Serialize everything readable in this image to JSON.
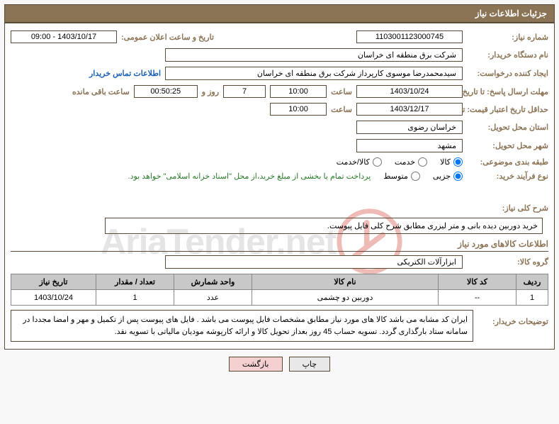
{
  "header": {
    "title": "جزئیات اطلاعات نیاز"
  },
  "fields": {
    "req_no_label": "شماره نیاز:",
    "req_no": "1103001123000745",
    "announce_label": "تاریخ و ساعت اعلان عمومی:",
    "announce_value": "1403/10/17 - 09:00",
    "buyer_org_label": "نام دستگاه خریدار:",
    "buyer_org": "شرکت برق منطقه ای خراسان",
    "creator_label": "ایجاد کننده درخواست:",
    "creator": "سیدمحمدرضا موسوی کارپرداز شرکت برق منطقه ای خراسان",
    "contact_link": "اطلاعات تماس خریدار",
    "deadline_label": "مهلت ارسال پاسخ: تا تاریخ:",
    "deadline_date": "1403/10/24",
    "time_label": "ساعت",
    "deadline_time": "10:00",
    "days": "7",
    "days_and": "روز و",
    "countdown": "00:50:25",
    "remaining_label": "ساعت باقی مانده",
    "validity_label": "حداقل تاریخ اعتبار قیمت: تا تاریخ:",
    "validity_date": "1403/12/17",
    "validity_time": "10:00",
    "province_label": "استان محل تحویل:",
    "province": "خراسان رضوی",
    "city_label": "شهر محل تحویل:",
    "city": "مشهد",
    "category_label": "طبقه بندی موضوعی:",
    "cat_goods": "کالا",
    "cat_service": "خدمت",
    "cat_both": "کالا/خدمت",
    "process_label": "نوع فرآیند خرید:",
    "proc_partial": "جزیی",
    "proc_medium": "متوسط",
    "payment_note": "پرداخت تمام یا بخشی از مبلغ خرید،از محل \"اسناد خزانه اسلامی\" خواهد بود."
  },
  "summary": {
    "title": "شرح کلی نیاز:",
    "text": "خرید دوربین دیده بانی و متر لیزری مطابق شرح کلی فایل پیوست."
  },
  "goods": {
    "section_title": "اطلاعات کالاهای مورد نیاز",
    "group_label": "گروه کالا:",
    "group_value": "ابزارآلات الکتریکی",
    "headers": {
      "row": "ردیف",
      "code": "کد کالا",
      "name": "نام کالا",
      "unit": "واحد شمارش",
      "qty": "تعداد / مقدار",
      "date": "تاریخ نیاز"
    },
    "rows": [
      {
        "n": "1",
        "code": "--",
        "name": "دوربین دو چشمی",
        "unit": "عدد",
        "qty": "1",
        "date": "1403/10/24"
      }
    ]
  },
  "desc": {
    "label": "توضیحات خریدار:",
    "text": "ایران کد مشابه می باشد کالا های مورد نیاز مطابق مشخصات فایل پیوست می باشد . فایل های پیوست پس از تکمیل و مهر و امضا مجددا در سامانه ستاد بارگذاری گردد. تسویه حساب 45 روز بعداز تحویل کالا و ارائه کارپوشه مودیان مالیاتی با تسویه نقد."
  },
  "buttons": {
    "print": "چاپ",
    "back": "بازگشت"
  },
  "watermark": "AriaTender.net"
}
